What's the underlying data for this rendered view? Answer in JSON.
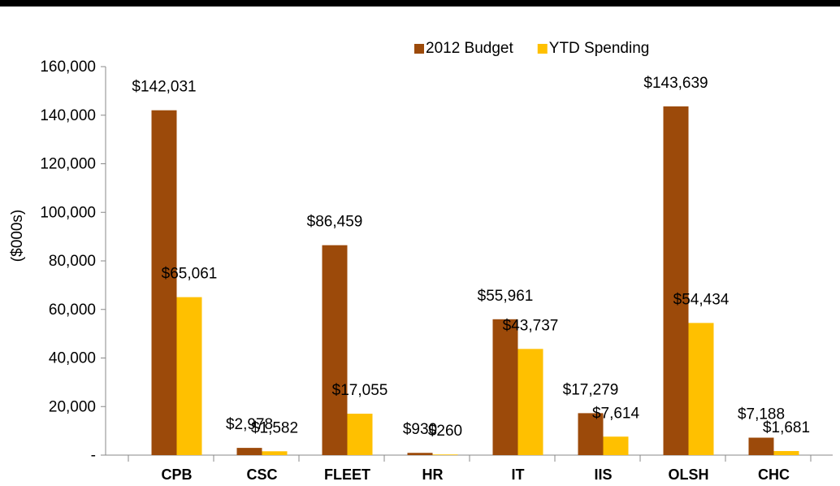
{
  "chart_data": {
    "type": "bar",
    "y_label": "($000s)",
    "categories": [
      "CPB",
      "CSC",
      "FLEET",
      "HR",
      "IT",
      "IIS",
      "OLSH",
      "CHC"
    ],
    "series": [
      {
        "name": "2012 Budget",
        "color": "#9c4a0a",
        "values": [
          142031,
          2978,
          86459,
          930,
          55961,
          17279,
          143639,
          7188
        ],
        "value_labels": [
          "$142,031",
          "$2,978",
          "$86,459",
          "$930",
          "$55,961",
          "$17,279",
          "$143,639",
          "$7,188"
        ]
      },
      {
        "name": "YTD Spending",
        "color": "#ffc000",
        "values": [
          65061,
          1582,
          17055,
          260,
          43737,
          7614,
          54434,
          1681
        ],
        "value_labels": [
          "$65,061",
          "$1,582",
          "$17,055",
          "$260",
          "$43,737",
          "$7,614",
          "$54,434",
          "$1,681"
        ]
      }
    ],
    "ylim": [
      0,
      160000
    ],
    "yticks": [
      {
        "value": 0,
        "label": "-"
      },
      {
        "value": 20000,
        "label": "20,000"
      },
      {
        "value": 40000,
        "label": "40,000"
      },
      {
        "value": 60000,
        "label": "60,000"
      },
      {
        "value": 80000,
        "label": "80,000"
      },
      {
        "value": 100000,
        "label": "100,000"
      },
      {
        "value": 120000,
        "label": "120,000"
      },
      {
        "value": 140000,
        "label": "140,000"
      },
      {
        "value": 160000,
        "label": "160,000"
      }
    ],
    "legend": "top"
  }
}
